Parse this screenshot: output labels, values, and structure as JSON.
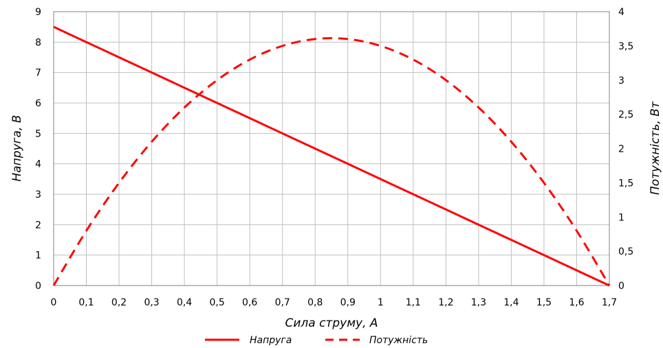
{
  "chart_data": {
    "type": "line",
    "xlabel": "Сила струму, А",
    "ylabel_left": "Напруга, В",
    "ylabel_right": "Потужність, Вт",
    "xlim": [
      0,
      1.7
    ],
    "ylim_left": [
      0,
      9
    ],
    "ylim_right": [
      0,
      4
    ],
    "grid": true,
    "legend_position": "bottom",
    "x_ticks": [
      "0",
      "0,1",
      "0,2",
      "0,3",
      "0,4",
      "0,5",
      "0,6",
      "0,7",
      "0,8",
      "0,9",
      "1",
      "1,1",
      "1,2",
      "1,3",
      "1,4",
      "1,5",
      "1,6",
      "1,7"
    ],
    "y_left_ticks": [
      "0",
      "1",
      "2",
      "3",
      "4",
      "5",
      "6",
      "7",
      "8",
      "9"
    ],
    "y_right_ticks": [
      "0",
      "0,5",
      "1",
      "1,5",
      "2",
      "2,5",
      "3",
      "3,5",
      "4"
    ],
    "x": [
      0,
      0.1,
      0.2,
      0.3,
      0.4,
      0.5,
      0.6,
      0.7,
      0.8,
      0.9,
      1.0,
      1.1,
      1.2,
      1.3,
      1.4,
      1.5,
      1.6,
      1.7
    ],
    "series": [
      {
        "name": "Напруга",
        "axis": "left",
        "style": "solid",
        "color": "#ff0000",
        "values": [
          8.5,
          8.0,
          7.5,
          7.0,
          6.5,
          6.0,
          5.5,
          5.0,
          4.5,
          4.0,
          3.5,
          3.0,
          2.5,
          2.0,
          1.5,
          1.0,
          0.5,
          0.0
        ]
      },
      {
        "name": "Потужність",
        "axis": "right",
        "style": "dashed",
        "color": "#ff0000",
        "values": [
          0,
          0.8,
          1.5,
          2.1,
          2.6,
          3.0,
          3.3,
          3.5,
          3.6,
          3.6,
          3.5,
          3.3,
          3.0,
          2.6,
          2.1,
          1.5,
          0.8,
          0
        ]
      }
    ]
  }
}
